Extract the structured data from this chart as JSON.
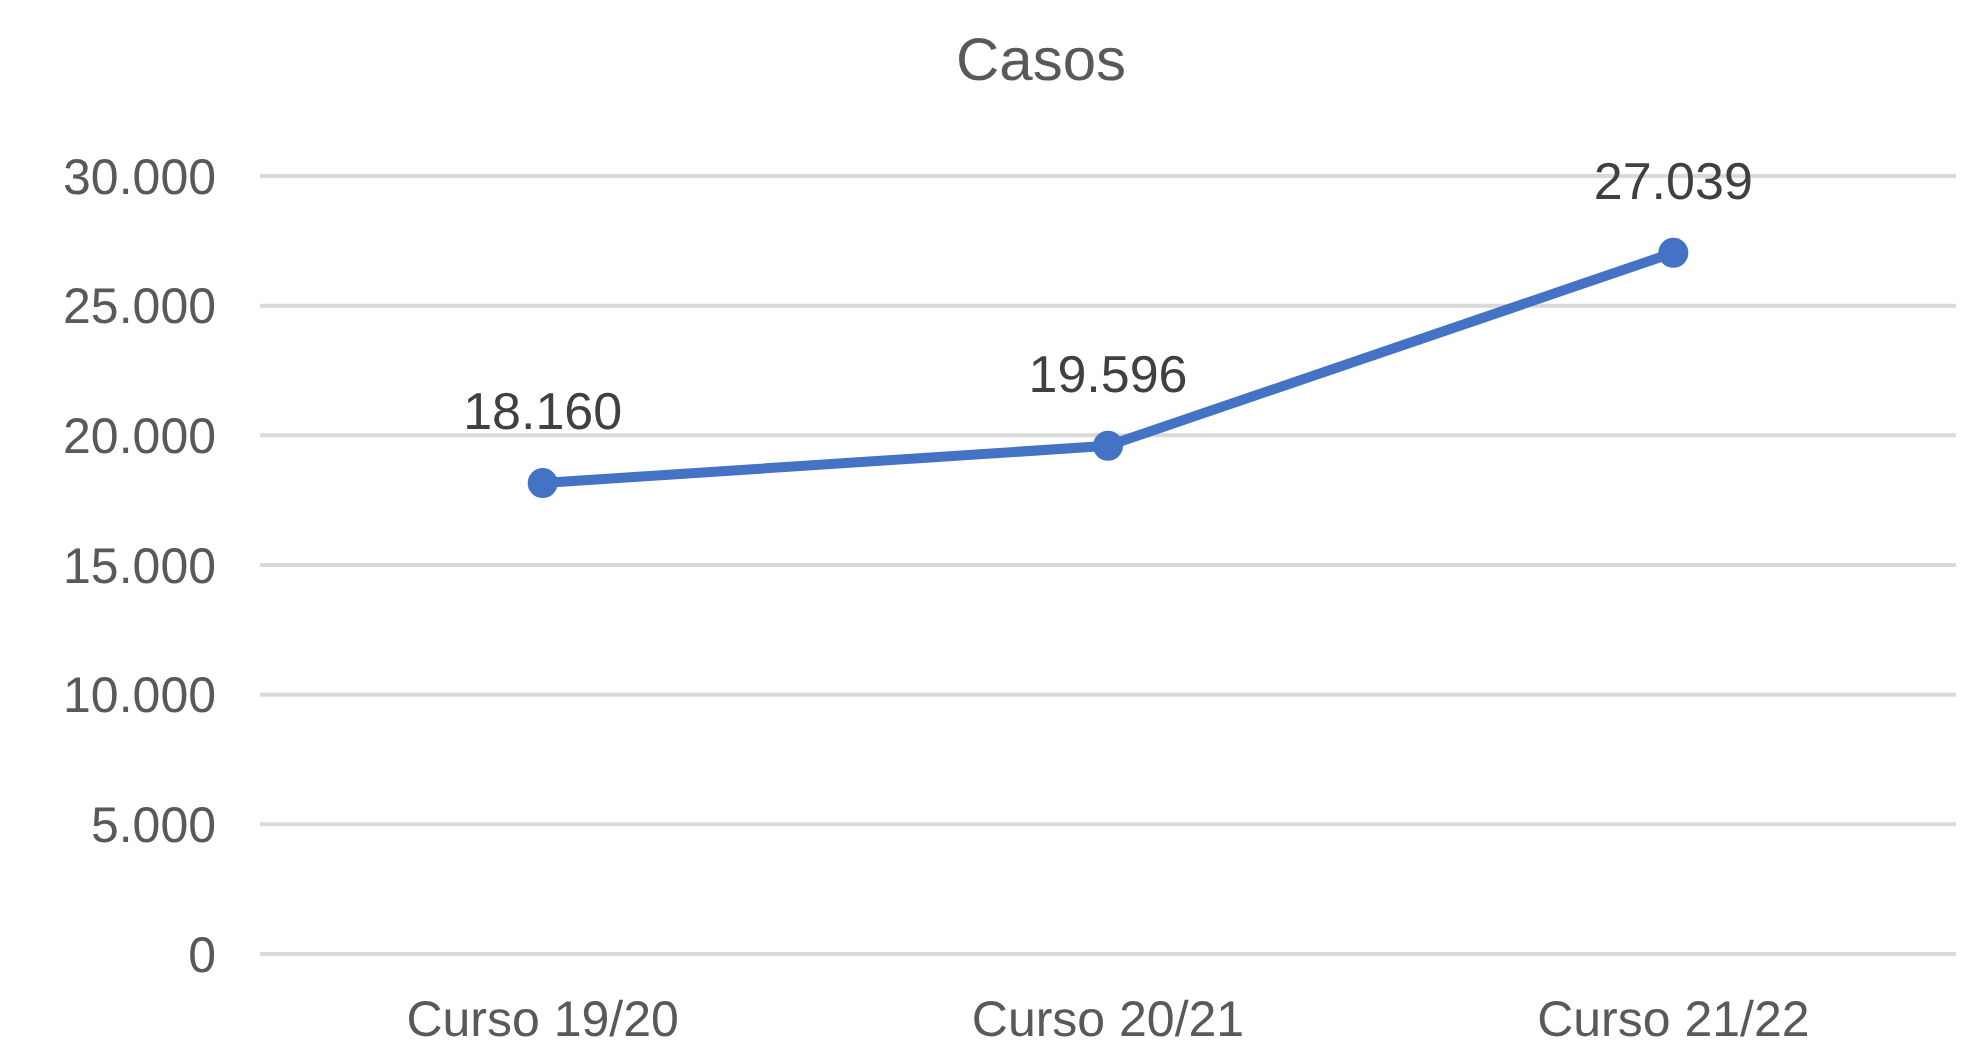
{
  "chart_data": {
    "type": "line",
    "title": "Casos",
    "categories": [
      "Curso 19/20",
      "Curso 20/21",
      "Curso 21/22"
    ],
    "series": [
      {
        "color": "#4472c4",
        "values": [
          18160,
          19596,
          27039
        ],
        "value_labels": [
          "18.160",
          "19.596",
          "27.039"
        ]
      }
    ],
    "ylim": [
      0,
      30000
    ],
    "yticks": [
      0,
      {
        "value": 5000,
        "label": "5.000"
      },
      {
        "value": 10000,
        "label": "10.000"
      },
      {
        "value": 15000,
        "label": "15.000"
      },
      {
        "value": 20000,
        "label": "20.000"
      },
      {
        "value": 25000,
        "label": "25.000"
      },
      {
        "value": 30000,
        "label": "30.000"
      }
    ],
    "grid": "y",
    "marker": "circle",
    "line_style": "solid"
  }
}
